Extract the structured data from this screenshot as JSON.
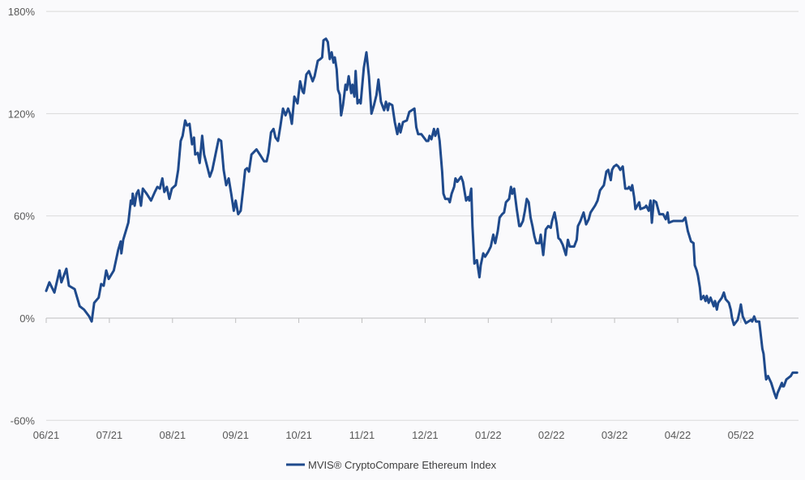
{
  "chart_data": {
    "type": "line",
    "title": "",
    "xlabel": "",
    "ylabel": "",
    "x_unit": "months since 06/21",
    "x_ticks": [
      "06/21",
      "07/21",
      "08/21",
      "09/21",
      "10/21",
      "11/21",
      "12/21",
      "01/22",
      "02/22",
      "03/22",
      "04/22",
      "05/22"
    ],
    "y_ticks": [
      "180%",
      "120%",
      "60%",
      "0%",
      "-60%"
    ],
    "y_tick_values": [
      180,
      120,
      60,
      0,
      -60
    ],
    "ylim": [
      -60,
      180
    ],
    "xlim": [
      0,
      11.9
    ],
    "grid": true,
    "legend_position": "bottom-center",
    "colors": {
      "line": "#1f4a8c",
      "grid": "#d9d9d9",
      "axis": "#bfbfbf"
    },
    "series": [
      {
        "name": "MVIS® CryptoCompare Ethereum Index",
        "points": [
          [
            0.0,
            16
          ],
          [
            0.05,
            21
          ],
          [
            0.13,
            15
          ],
          [
            0.21,
            28
          ],
          [
            0.24,
            21
          ],
          [
            0.32,
            29
          ],
          [
            0.36,
            19
          ],
          [
            0.45,
            17
          ],
          [
            0.53,
            7
          ],
          [
            0.6,
            5
          ],
          [
            0.68,
            1
          ],
          [
            0.72,
            -2
          ],
          [
            0.76,
            9
          ],
          [
            0.83,
            12
          ],
          [
            0.87,
            20
          ],
          [
            0.91,
            19
          ],
          [
            0.95,
            28
          ],
          [
            0.99,
            23
          ],
          [
            1.07,
            28
          ],
          [
            1.14,
            40
          ],
          [
            1.18,
            45
          ],
          [
            1.19,
            38
          ],
          [
            1.22,
            46
          ],
          [
            1.3,
            56
          ],
          [
            1.34,
            69
          ],
          [
            1.36,
            67
          ],
          [
            1.37,
            73
          ],
          [
            1.4,
            66
          ],
          [
            1.43,
            73
          ],
          [
            1.46,
            75
          ],
          [
            1.5,
            66
          ],
          [
            1.53,
            76
          ],
          [
            1.59,
            73
          ],
          [
            1.66,
            69
          ],
          [
            1.72,
            74
          ],
          [
            1.76,
            77
          ],
          [
            1.8,
            76
          ],
          [
            1.84,
            82
          ],
          [
            1.87,
            74
          ],
          [
            1.91,
            77
          ],
          [
            1.95,
            70
          ],
          [
            1.99,
            76
          ],
          [
            2.05,
            78
          ],
          [
            2.09,
            87
          ],
          [
            2.13,
            104
          ],
          [
            2.16,
            107
          ],
          [
            2.2,
            116
          ],
          [
            2.23,
            113
          ],
          [
            2.27,
            114
          ],
          [
            2.31,
            102
          ],
          [
            2.34,
            106
          ],
          [
            2.36,
            96
          ],
          [
            2.4,
            97
          ],
          [
            2.43,
            91
          ],
          [
            2.47,
            107
          ],
          [
            2.5,
            96
          ],
          [
            2.57,
            86
          ],
          [
            2.59,
            83
          ],
          [
            2.63,
            87
          ],
          [
            2.68,
            96
          ],
          [
            2.73,
            105
          ],
          [
            2.77,
            104
          ],
          [
            2.81,
            87
          ],
          [
            2.85,
            78
          ],
          [
            2.89,
            82
          ],
          [
            2.93,
            73
          ],
          [
            2.97,
            63
          ],
          [
            3.0,
            69
          ],
          [
            3.04,
            61
          ],
          [
            3.08,
            63
          ],
          [
            3.12,
            76
          ],
          [
            3.15,
            87
          ],
          [
            3.18,
            88
          ],
          [
            3.21,
            86
          ],
          [
            3.25,
            96
          ],
          [
            3.33,
            99
          ],
          [
            3.4,
            95
          ],
          [
            3.45,
            92
          ],
          [
            3.49,
            92
          ],
          [
            3.52,
            97
          ],
          [
            3.56,
            109
          ],
          [
            3.6,
            111
          ],
          [
            3.63,
            106
          ],
          [
            3.67,
            104
          ],
          [
            3.71,
            113
          ],
          [
            3.75,
            123
          ],
          [
            3.79,
            119
          ],
          [
            3.83,
            123
          ],
          [
            3.86,
            120
          ],
          [
            3.89,
            114
          ],
          [
            3.93,
            130
          ],
          [
            3.98,
            126
          ],
          [
            4.02,
            139
          ],
          [
            4.06,
            133
          ],
          [
            4.08,
            132
          ],
          [
            4.12,
            143
          ],
          [
            4.16,
            145
          ],
          [
            4.2,
            141
          ],
          [
            4.22,
            139
          ],
          [
            4.25,
            142
          ],
          [
            4.3,
            151
          ],
          [
            4.34,
            152
          ],
          [
            4.37,
            153
          ],
          [
            4.39,
            163
          ],
          [
            4.43,
            164
          ],
          [
            4.46,
            162
          ],
          [
            4.49,
            152
          ],
          [
            4.52,
            156
          ],
          [
            4.55,
            150
          ],
          [
            4.57,
            153
          ],
          [
            4.6,
            146
          ],
          [
            4.62,
            134
          ],
          [
            4.65,
            131
          ],
          [
            4.67,
            119
          ],
          [
            4.7,
            125
          ],
          [
            4.74,
            137
          ],
          [
            4.76,
            134
          ],
          [
            4.79,
            142
          ],
          [
            4.83,
            132
          ],
          [
            4.85,
            137
          ],
          [
            4.88,
            130
          ],
          [
            4.9,
            145
          ],
          [
            4.93,
            126
          ],
          [
            4.96,
            128
          ],
          [
            4.98,
            126
          ],
          [
            5.01,
            139
          ],
          [
            5.03,
            147
          ],
          [
            5.07,
            156
          ],
          [
            5.11,
            142
          ],
          [
            5.15,
            120
          ],
          [
            5.19,
            125
          ],
          [
            5.23,
            131
          ],
          [
            5.26,
            140
          ],
          [
            5.3,
            127
          ],
          [
            5.35,
            122
          ],
          [
            5.38,
            127
          ],
          [
            5.41,
            122
          ],
          [
            5.43,
            126
          ],
          [
            5.48,
            125
          ],
          [
            5.52,
            115
          ],
          [
            5.56,
            108
          ],
          [
            5.59,
            114
          ],
          [
            5.61,
            109
          ],
          [
            5.65,
            115
          ],
          [
            5.71,
            116
          ],
          [
            5.75,
            121
          ],
          [
            5.83,
            123
          ],
          [
            5.86,
            112
          ],
          [
            5.89,
            108
          ],
          [
            5.94,
            108
          ],
          [
            6.02,
            104
          ],
          [
            6.05,
            104
          ],
          [
            6.07,
            107
          ],
          [
            6.1,
            105
          ],
          [
            6.14,
            111
          ],
          [
            6.16,
            107
          ],
          [
            6.2,
            111
          ],
          [
            6.23,
            104
          ],
          [
            6.27,
            86
          ],
          [
            6.29,
            73
          ],
          [
            6.32,
            70
          ],
          [
            6.37,
            70
          ],
          [
            6.39,
            68
          ],
          [
            6.42,
            73
          ],
          [
            6.46,
            77
          ],
          [
            6.48,
            82
          ],
          [
            6.51,
            80
          ],
          [
            6.57,
            83
          ],
          [
            6.6,
            80
          ],
          [
            6.63,
            73
          ],
          [
            6.65,
            69
          ],
          [
            6.68,
            71
          ],
          [
            6.7,
            69
          ],
          [
            6.73,
            76
          ],
          [
            6.75,
            54
          ],
          [
            6.78,
            32
          ],
          [
            6.82,
            34
          ],
          [
            6.86,
            24
          ],
          [
            6.88,
            31
          ],
          [
            6.92,
            38
          ],
          [
            6.95,
            36
          ],
          [
            7.0,
            39
          ],
          [
            7.04,
            42
          ],
          [
            7.08,
            49
          ],
          [
            7.11,
            44
          ],
          [
            7.15,
            51
          ],
          [
            7.18,
            59
          ],
          [
            7.22,
            61
          ],
          [
            7.25,
            62
          ],
          [
            7.28,
            68
          ],
          [
            7.33,
            70
          ],
          [
            7.36,
            77
          ],
          [
            7.38,
            73
          ],
          [
            7.41,
            76
          ],
          [
            7.45,
            64
          ],
          [
            7.49,
            54
          ],
          [
            7.51,
            54
          ],
          [
            7.55,
            57
          ],
          [
            7.58,
            63
          ],
          [
            7.61,
            70
          ],
          [
            7.64,
            68
          ],
          [
            7.67,
            59
          ],
          [
            7.7,
            54
          ],
          [
            7.73,
            48
          ],
          [
            7.76,
            44
          ],
          [
            7.81,
            44
          ],
          [
            7.83,
            49
          ],
          [
            7.87,
            37
          ],
          [
            7.91,
            52
          ],
          [
            7.95,
            54
          ],
          [
            7.99,
            53
          ],
          [
            8.01,
            57
          ],
          [
            8.05,
            62
          ],
          [
            8.08,
            56
          ],
          [
            8.11,
            47
          ],
          [
            8.14,
            46
          ],
          [
            8.18,
            43
          ],
          [
            8.23,
            37
          ],
          [
            8.26,
            46
          ],
          [
            8.29,
            42
          ],
          [
            8.36,
            42
          ],
          [
            8.4,
            46
          ],
          [
            8.42,
            54
          ],
          [
            8.46,
            57
          ],
          [
            8.51,
            62
          ],
          [
            8.55,
            55
          ],
          [
            8.59,
            58
          ],
          [
            8.62,
            62
          ],
          [
            8.69,
            66
          ],
          [
            8.73,
            69
          ],
          [
            8.77,
            75
          ],
          [
            8.83,
            78
          ],
          [
            8.87,
            86
          ],
          [
            8.9,
            87
          ],
          [
            8.94,
            81
          ],
          [
            8.96,
            87
          ],
          [
            8.99,
            89
          ],
          [
            9.03,
            90
          ],
          [
            9.06,
            89
          ],
          [
            9.09,
            87
          ],
          [
            9.13,
            89
          ],
          [
            9.17,
            76
          ],
          [
            9.21,
            76
          ],
          [
            9.23,
            77
          ],
          [
            9.26,
            75
          ],
          [
            9.28,
            78
          ],
          [
            9.31,
            71
          ],
          [
            9.33,
            64
          ],
          [
            9.39,
            68
          ],
          [
            9.41,
            64
          ],
          [
            9.48,
            65
          ],
          [
            9.5,
            66
          ],
          [
            9.54,
            63
          ],
          [
            9.57,
            69
          ],
          [
            9.59,
            56
          ],
          [
            9.62,
            69
          ],
          [
            9.66,
            68
          ],
          [
            9.71,
            61
          ],
          [
            9.77,
            61
          ],
          [
            9.81,
            58
          ],
          [
            9.84,
            62
          ],
          [
            9.86,
            56
          ],
          [
            9.93,
            57
          ],
          [
            10.0,
            57
          ],
          [
            10.08,
            57
          ],
          [
            10.12,
            59
          ],
          [
            10.16,
            51
          ],
          [
            10.21,
            45
          ],
          [
            10.25,
            44
          ],
          [
            10.27,
            31
          ],
          [
            10.3,
            28
          ],
          [
            10.32,
            25
          ],
          [
            10.35,
            18
          ],
          [
            10.37,
            11
          ],
          [
            10.41,
            13
          ],
          [
            10.44,
            10
          ],
          [
            10.46,
            13
          ],
          [
            10.49,
            9
          ],
          [
            10.52,
            12
          ],
          [
            10.57,
            7
          ],
          [
            10.59,
            10
          ],
          [
            10.62,
            5
          ],
          [
            10.64,
            9
          ],
          [
            10.7,
            12
          ],
          [
            10.73,
            15
          ],
          [
            10.76,
            11
          ],
          [
            10.81,
            9
          ],
          [
            10.84,
            5
          ],
          [
            10.86,
            0
          ],
          [
            10.89,
            -4
          ],
          [
            10.95,
            -1
          ],
          [
            10.98,
            4
          ],
          [
            11.0,
            8
          ],
          [
            11.03,
            1
          ],
          [
            11.08,
            -3
          ],
          [
            11.16,
            -1
          ],
          [
            11.18,
            -2
          ],
          [
            11.21,
            1
          ],
          [
            11.24,
            -2
          ],
          [
            11.29,
            -2
          ],
          [
            11.31,
            -8
          ],
          [
            11.34,
            -18
          ],
          [
            11.36,
            -21
          ],
          [
            11.39,
            -33
          ],
          [
            11.4,
            -36
          ],
          [
            11.43,
            -34
          ],
          [
            11.48,
            -38
          ],
          [
            11.53,
            -44
          ],
          [
            11.56,
            -47
          ],
          [
            11.58,
            -44
          ],
          [
            11.65,
            -38
          ],
          [
            11.66,
            -40
          ],
          [
            11.68,
            -40
          ],
          [
            11.72,
            -36
          ],
          [
            11.79,
            -34
          ],
          [
            11.82,
            -32
          ],
          [
            11.89,
            -32
          ]
        ]
      }
    ]
  }
}
